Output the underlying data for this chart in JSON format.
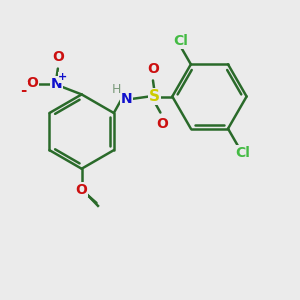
{
  "background_color": "#ebebeb",
  "bond_color": "#2a6a2a",
  "bond_width": 1.8,
  "atom_colors": {
    "C": "#2a6a2a",
    "H": "#7a9a7a",
    "N": "#1010cc",
    "O": "#cc1010",
    "S": "#cccc00",
    "Cl": "#44bb44"
  },
  "figsize": [
    3.0,
    3.0
  ],
  "dpi": 100,
  "xlim": [
    0,
    10
  ],
  "ylim": [
    0,
    10
  ]
}
